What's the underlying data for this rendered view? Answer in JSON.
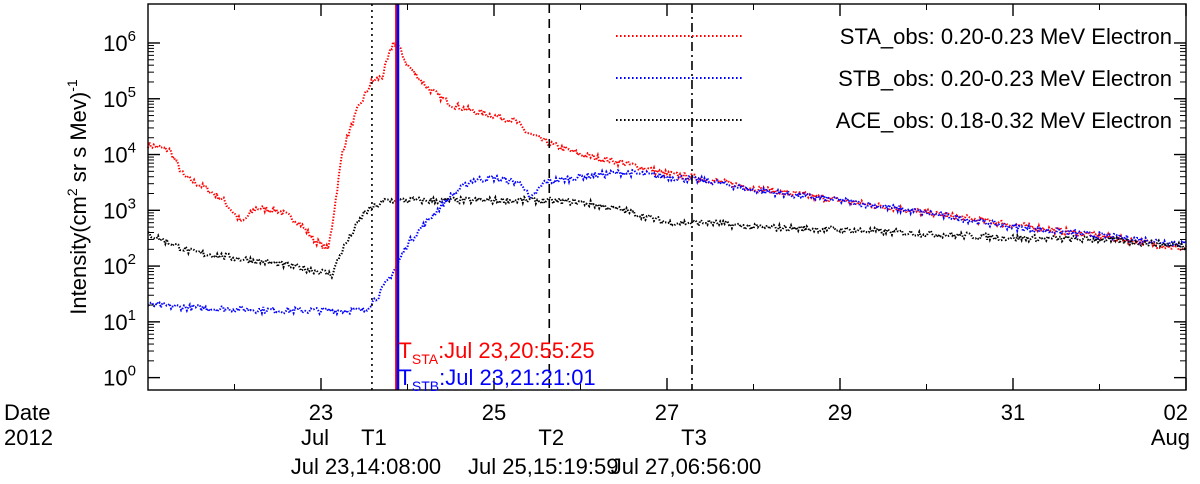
{
  "chart_data": {
    "type": "line",
    "title": "",
    "ylabel": "Intensity(cm² sr s Mev)⁻¹",
    "ylabel_main": "Intensity(cm",
    "ylabel_sup1": "2",
    "ylabel_rest": " sr s Mev)",
    "ylabel_sup2": "-1",
    "yscale": "log",
    "ylim": [
      0.6,
      5000000
    ],
    "xlim_days": [
      "2012-07-21 00:00",
      "2012-08-02 00:00"
    ],
    "x_axis_title": [
      "Date",
      "2012"
    ],
    "x_ticks": [
      {
        "date": "2012-07-23",
        "label": "23"
      },
      {
        "date": "2012-07-25",
        "label": "25"
      },
      {
        "date": "2012-07-27",
        "label": "27"
      },
      {
        "date": "2012-07-29",
        "label": "29"
      },
      {
        "date": "2012-07-31",
        "label": "31"
      },
      {
        "date": "2012-08-02",
        "label": "02"
      }
    ],
    "x_month_labels": [
      {
        "date": "2012-07-23",
        "label": "Jul"
      },
      {
        "date": "2012-08-02",
        "label": "Aug"
      }
    ],
    "y_ticks": [
      {
        "value": 1,
        "base": "10",
        "exp": "0"
      },
      {
        "value": 10,
        "base": "10",
        "exp": "1"
      },
      {
        "value": 100,
        "base": "10",
        "exp": "2"
      },
      {
        "value": 1000,
        "base": "10",
        "exp": "3"
      },
      {
        "value": 10000,
        "base": "10",
        "exp": "4"
      },
      {
        "value": 100000,
        "base": "10",
        "exp": "5"
      },
      {
        "value": 1000000,
        "base": "10",
        "exp": "6"
      }
    ],
    "legend_position": "top-right",
    "series": [
      {
        "name": "STA_obs: 0.20-0.23 MeV Electron",
        "color": "#ff0000",
        "x": [
          "2012-07-21 00:00",
          "2012-07-21 06:00",
          "2012-07-21 10:00",
          "2012-07-21 16:00",
          "2012-07-21 21:00",
          "2012-07-22 02:00",
          "2012-07-22 06:00",
          "2012-07-22 12:00",
          "2012-07-22 18:00",
          "2012-07-22 22:00",
          "2012-07-23 02:00",
          "2012-07-23 03:00",
          "2012-07-23 06:00",
          "2012-07-23 10:00",
          "2012-07-23 14:00",
          "2012-07-23 17:00",
          "2012-07-23 20:00",
          "2012-07-23 21:00",
          "2012-07-24 00:00",
          "2012-07-24 06:00",
          "2012-07-24 12:00",
          "2012-07-24 18:00",
          "2012-07-25 00:00",
          "2012-07-25 06:00",
          "2012-07-25 09:00",
          "2012-07-25 12:00",
          "2012-07-25 16:00",
          "2012-07-26 00:00",
          "2012-07-26 12:00",
          "2012-07-27 00:00",
          "2012-07-27 12:00",
          "2012-07-28 00:00",
          "2012-07-29 00:00",
          "2012-07-30 00:00",
          "2012-07-31 00:00",
          "2012-08-01 00:00",
          "2012-08-02 00:00"
        ],
        "y": [
          15000,
          12000,
          4000,
          2500,
          1500,
          600,
          1100,
          1000,
          600,
          300,
          200,
          500,
          12000,
          60000,
          200000,
          250000,
          1000000,
          1000000,
          400000,
          150000,
          80000,
          60000,
          50000,
          40000,
          25000,
          20000,
          15000,
          10000,
          7000,
          4500,
          3500,
          2500,
          1500,
          900,
          550,
          350,
          200
        ]
      },
      {
        "name": "STB_obs: 0.20-0.23 MeV Electron",
        "color": "#0000ff",
        "x": [
          "2012-07-21 00:00",
          "2012-07-21 12:00",
          "2012-07-22 00:00",
          "2012-07-22 12:00",
          "2012-07-23 00:00",
          "2012-07-23 12:00",
          "2012-07-23 16:00",
          "2012-07-23 21:00",
          "2012-07-24 00:00",
          "2012-07-24 06:00",
          "2012-07-24 12:00",
          "2012-07-24 18:00",
          "2012-07-25 00:00",
          "2012-07-25 08:00",
          "2012-07-25 10:00",
          "2012-07-25 14:00",
          "2012-07-26 00:00",
          "2012-07-26 12:00",
          "2012-07-27 00:00",
          "2012-07-27 12:00",
          "2012-07-28 00:00",
          "2012-07-29 00:00",
          "2012-07-30 00:00",
          "2012-07-31 00:00",
          "2012-08-01 00:00",
          "2012-08-02 00:00"
        ],
        "y": [
          20,
          18,
          17,
          16,
          16,
          16,
          30,
          100,
          250,
          700,
          1800,
          3500,
          3800,
          3000,
          1500,
          3200,
          4000,
          4800,
          4000,
          3300,
          2300,
          1500,
          900,
          500,
          350,
          250
        ]
      },
      {
        "name": "ACE_obs: 0.18-0.32 MeV Electron",
        "color": "#000000",
        "x": [
          "2012-07-21 00:00",
          "2012-07-21 12:00",
          "2012-07-22 00:00",
          "2012-07-22 12:00",
          "2012-07-23 00:00",
          "2012-07-23 03:00",
          "2012-07-23 06:00",
          "2012-07-23 12:00",
          "2012-07-23 18:00",
          "2012-07-24 00:00",
          "2012-07-24 12:00",
          "2012-07-25 00:00",
          "2012-07-25 12:00",
          "2012-07-26 00:00",
          "2012-07-26 12:00",
          "2012-07-27 00:00",
          "2012-07-27 12:00",
          "2012-07-28 00:00",
          "2012-07-29 00:00",
          "2012-07-30 00:00",
          "2012-07-31 00:00",
          "2012-08-01 00:00",
          "2012-08-02 00:00"
        ],
        "y": [
          380,
          180,
          140,
          110,
          80,
          70,
          200,
          900,
          1500,
          1500,
          1500,
          1500,
          1500,
          1400,
          1000,
          600,
          600,
          500,
          450,
          380,
          320,
          300,
          230
        ]
      }
    ],
    "vertical_markers": [
      {
        "date": "2012-07-23 14:08:00",
        "style": "dotted",
        "color": "#000000",
        "label": "T1",
        "time_label": "Jul 23,14:08:00"
      },
      {
        "date": "2012-07-25 15:19:59",
        "style": "dashed",
        "color": "#000000",
        "label": "T2",
        "time_label": "Jul 25,15:19:59"
      },
      {
        "date": "2012-07-27 06:56:00",
        "style": "dashdot",
        "color": "#000000",
        "label": "T3",
        "time_label": "Jul 27,06:56:00"
      },
      {
        "date": "2012-07-23 20:55:25",
        "style": "solid",
        "color": "#ff0000"
      },
      {
        "date": "2012-07-23 21:21:01",
        "style": "solid",
        "color": "#0000ff"
      }
    ],
    "annotations": [
      {
        "base": "T",
        "sub": "STA",
        "text": ":Jul 23,20:55:25",
        "color": "#ff0000"
      },
      {
        "base": "T",
        "sub": "STB",
        "text": ":Jul 23,21:21:01",
        "color": "#0000ff"
      }
    ]
  }
}
